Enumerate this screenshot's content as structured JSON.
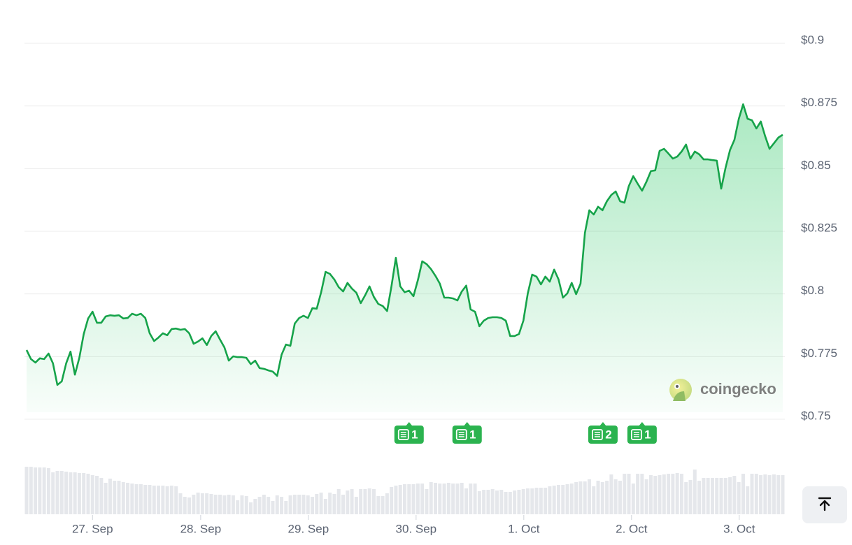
{
  "chart_data": {
    "type": "line",
    "series": [
      {
        "name": "price",
        "color": "#16a34a",
        "values": [
          0.7776,
          0.774,
          0.7726,
          0.7743,
          0.774,
          0.7762,
          0.7723,
          0.7637,
          0.7651,
          0.7723,
          0.777,
          0.7678,
          0.7745,
          0.784,
          0.7902,
          0.7929,
          0.7885,
          0.7885,
          0.791,
          0.7915,
          0.7913,
          0.7915,
          0.7902,
          0.7904,
          0.7921,
          0.7915,
          0.7921,
          0.7904,
          0.7843,
          0.7812,
          0.7826,
          0.7843,
          0.7835,
          0.786,
          0.7862,
          0.7857,
          0.786,
          0.7843,
          0.7801,
          0.781,
          0.7823,
          0.7796,
          0.7832,
          0.7851,
          0.7818,
          0.7787,
          0.7734,
          0.7751,
          0.7748,
          0.7748,
          0.7745,
          0.772,
          0.7734,
          0.7704,
          0.7701,
          0.7695,
          0.769,
          0.7673,
          0.7757,
          0.7798,
          0.7793,
          0.7882,
          0.7904,
          0.7913,
          0.7904,
          0.7943,
          0.7941,
          0.8007,
          0.8088,
          0.808,
          0.8058,
          0.8027,
          0.801,
          0.8044,
          0.8021,
          0.8005,
          0.7963,
          0.7994,
          0.803,
          0.7988,
          0.796,
          0.7952,
          0.7932,
          0.803,
          0.8144,
          0.803,
          0.8007,
          0.8013,
          0.7991,
          0.8055,
          0.813,
          0.8119,
          0.8099,
          0.8072,
          0.8041,
          0.7985,
          0.7985,
          0.7982,
          0.7974,
          0.801,
          0.8033,
          0.7938,
          0.7929,
          0.7871,
          0.7893,
          0.7904,
          0.7907,
          0.7907,
          0.7904,
          0.7893,
          0.7832,
          0.7832,
          0.784,
          0.7893,
          0.8002,
          0.8077,
          0.8069,
          0.8038,
          0.8069,
          0.8049,
          0.8097,
          0.8058,
          0.7985,
          0.8002,
          0.8044,
          0.7999,
          0.8041,
          0.8244,
          0.8334,
          0.8317,
          0.8348,
          0.8334,
          0.837,
          0.8395,
          0.8409,
          0.837,
          0.8364,
          0.8431,
          0.847,
          0.844,
          0.8412,
          0.8448,
          0.849,
          0.8493,
          0.8571,
          0.8579,
          0.856,
          0.854,
          0.8548,
          0.8568,
          0.8596,
          0.854,
          0.8568,
          0.8557,
          0.8537,
          0.8537,
          0.8534,
          0.8532,
          0.842,
          0.8504,
          0.8574,
          0.8615,
          0.8699,
          0.8757,
          0.8699,
          0.8693,
          0.866,
          0.8688,
          0.8629,
          0.8579,
          0.8601,
          0.8624,
          0.8635
        ]
      }
    ],
    "volume": {
      "color": "#e5e7eb",
      "values": [
        68,
        68,
        67,
        67,
        67,
        66,
        60,
        62,
        62,
        61,
        60,
        60,
        59,
        59,
        58,
        56,
        55,
        52,
        45,
        51,
        48,
        48,
        46,
        45,
        44,
        43,
        43,
        42,
        42,
        41,
        41,
        41,
        40,
        41,
        40,
        30,
        25,
        24,
        28,
        31,
        30,
        30,
        29,
        28,
        28,
        27,
        28,
        27,
        20,
        27,
        26,
        17,
        22,
        25,
        28,
        25,
        19,
        27,
        25,
        19,
        27,
        28,
        28,
        28,
        27,
        25,
        29,
        31,
        22,
        31,
        29,
        36,
        28,
        34,
        36,
        25,
        36,
        36,
        37,
        36,
        26,
        26,
        30,
        39,
        41,
        42,
        43,
        43,
        43,
        44,
        44,
        36,
        46,
        45,
        44,
        44,
        45,
        44,
        44,
        45,
        37,
        44,
        44,
        33,
        35,
        35,
        36,
        34,
        35,
        32,
        32,
        34,
        35,
        36,
        37,
        37,
        38,
        38,
        38,
        40,
        41,
        42,
        42,
        43,
        44,
        46,
        47,
        47,
        50,
        40,
        48,
        46,
        48,
        57,
        50,
        48,
        58,
        58,
        44,
        58,
        58,
        50,
        56,
        55,
        56,
        57,
        58,
        58,
        59,
        58,
        46,
        49,
        64,
        48,
        52,
        52,
        52,
        52,
        52,
        52,
        53,
        55,
        46,
        58,
        40,
        58,
        58,
        56,
        57,
        56,
        57,
        56,
        56
      ]
    },
    "ylim": [
      0.75,
      0.9
    ],
    "yticks": [
      {
        "value": 0.75,
        "label": "$0.75"
      },
      {
        "value": 0.775,
        "label": "$0.775"
      },
      {
        "value": 0.8,
        "label": "$0.8"
      },
      {
        "value": 0.825,
        "label": "$0.825"
      },
      {
        "value": 0.85,
        "label": "$0.85"
      },
      {
        "value": 0.875,
        "label": "$0.875"
      },
      {
        "value": 0.9,
        "label": "$0.9"
      }
    ],
    "xticks": [
      {
        "value": 15,
        "label": "27. Sep"
      },
      {
        "value": 39.6,
        "label": "28. Sep"
      },
      {
        "value": 64.1,
        "label": "29. Sep"
      },
      {
        "value": 88.6,
        "label": "30. Sep"
      },
      {
        "value": 113.1,
        "label": "1. Oct"
      },
      {
        "value": 137.6,
        "label": "2. Oct"
      },
      {
        "value": 162.1,
        "label": "3. Oct"
      }
    ],
    "news": [
      {
        "x": 87,
        "count": 1
      },
      {
        "x": 100.2,
        "count": 1
      },
      {
        "x": 131.1,
        "count": 2
      },
      {
        "x": 140,
        "count": 1
      }
    ],
    "grid": true,
    "watermark": "coingecko"
  }
}
